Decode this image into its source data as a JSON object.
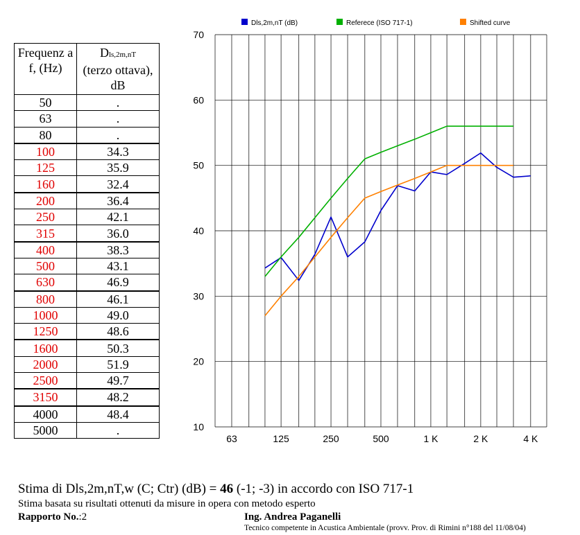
{
  "table": {
    "col1_header": "Frequenz a f, (Hz)",
    "col2_header_main": "D",
    "col2_header_sub": "ls,2m,nT",
    "col2_header_rest": "(terzo ottava), dB",
    "rows": [
      {
        "freq": "50",
        "value": ".",
        "red": false
      },
      {
        "freq": "63",
        "value": ".",
        "red": false
      },
      {
        "freq": "80",
        "value": ".",
        "red": false
      },
      {
        "freq": "100",
        "value": "34.3",
        "red": true
      },
      {
        "freq": "125",
        "value": "35.9",
        "red": true
      },
      {
        "freq": "160",
        "value": "32.4",
        "red": true
      },
      {
        "freq": "200",
        "value": "36.4",
        "red": true
      },
      {
        "freq": "250",
        "value": "42.1",
        "red": true
      },
      {
        "freq": "315",
        "value": "36.0",
        "red": true
      },
      {
        "freq": "400",
        "value": "38.3",
        "red": true
      },
      {
        "freq": "500",
        "value": "43.1",
        "red": true
      },
      {
        "freq": "630",
        "value": "46.9",
        "red": true
      },
      {
        "freq": "800",
        "value": "46.1",
        "red": true
      },
      {
        "freq": "1000",
        "value": "49.0",
        "red": true
      },
      {
        "freq": "1250",
        "value": "48.6",
        "red": true
      },
      {
        "freq": "1600",
        "value": "50.3",
        "red": true
      },
      {
        "freq": "2000",
        "value": "51.9",
        "red": true
      },
      {
        "freq": "2500",
        "value": "49.7",
        "red": true
      },
      {
        "freq": "3150",
        "value": "48.2",
        "red": true
      },
      {
        "freq": "4000",
        "value": "48.4",
        "red": false
      },
      {
        "freq": "5000",
        "value": ".",
        "red": false
      }
    ]
  },
  "chart_data": {
    "type": "line",
    "x_scale": "log (third-octave bands)",
    "x_ticks": [
      "63",
      "125",
      "250",
      "500",
      "1 K",
      "2 K",
      "4 K"
    ],
    "x_tick_values": [
      63,
      125,
      250,
      500,
      1000,
      2000,
      4000
    ],
    "y_ticks": [
      10,
      20,
      30,
      40,
      50,
      60,
      70
    ],
    "ylim": [
      10,
      70
    ],
    "grid": true,
    "legend_position": "top",
    "series": [
      {
        "name": "Dls,2m,nT (dB)",
        "color": "#0000cc",
        "x": [
          100,
          125,
          160,
          200,
          250,
          315,
          400,
          500,
          630,
          800,
          1000,
          1250,
          1600,
          2000,
          2500,
          3150,
          4000
        ],
        "values": [
          34.3,
          35.9,
          32.4,
          36.4,
          42.1,
          36.0,
          38.3,
          43.1,
          46.9,
          46.1,
          49.0,
          48.6,
          50.3,
          51.9,
          49.7,
          48.2,
          48.4
        ]
      },
      {
        "name": "Referece (ISO 717-1)",
        "color": "#00b000",
        "x": [
          100,
          125,
          160,
          200,
          250,
          315,
          400,
          500,
          630,
          800,
          1000,
          1250,
          1600,
          2000,
          2500,
          3150
        ],
        "values": [
          33,
          36,
          39,
          42,
          45,
          48,
          51,
          52,
          53,
          54,
          55,
          56,
          56,
          56,
          56,
          56
        ]
      },
      {
        "name": "Shifted curve",
        "color": "#ff8000",
        "x": [
          100,
          125,
          160,
          200,
          250,
          315,
          400,
          500,
          630,
          800,
          1000,
          1250,
          1600,
          2000,
          2500,
          3150
        ],
        "values": [
          27,
          30,
          33,
          36,
          39,
          42,
          45,
          46,
          47,
          48,
          49,
          50,
          50,
          50,
          50,
          50
        ]
      }
    ]
  },
  "footer": {
    "line1_prefix": "Stima di Dls,2m,nT,w (C; Ctr) (dB) = ",
    "line1_value": "46",
    "line1_suffix": " (-1; -3) in accordo con ISO 717-1",
    "line2": "Stima basata su risultati ottenuti da misure in opera con metodo esperto",
    "report_label": "Rapporto No.",
    "report_value": ":2",
    "author_name": "Ing. Andrea Paganelli",
    "author_role": "Tecnico competente in Acustica Ambientale (provv. Prov. di Rimini n°188 del 11/08/04)"
  }
}
